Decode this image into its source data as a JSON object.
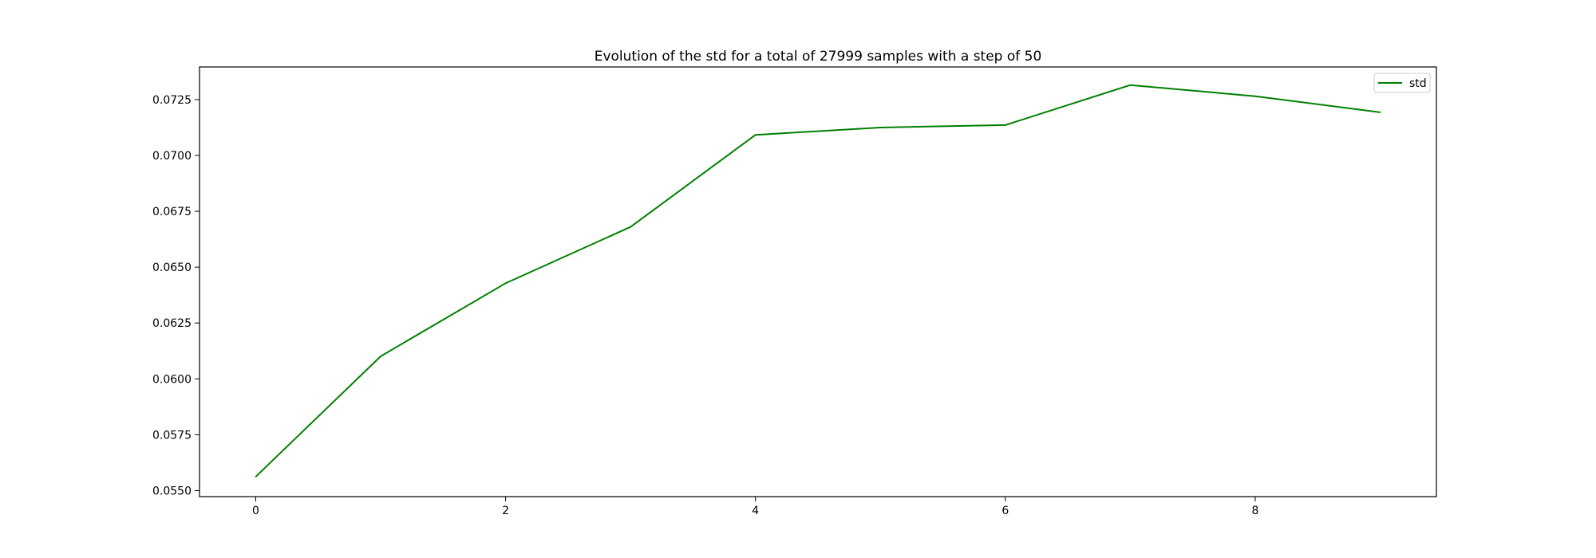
{
  "chart_data": {
    "type": "line",
    "title": "Evolution of the std for a total of 27999 samples with a step of 50",
    "xlabel": "",
    "ylabel": "",
    "x": [
      0,
      1,
      2,
      3,
      4,
      5,
      6,
      7,
      8,
      9
    ],
    "series": [
      {
        "name": "std",
        "color": "#008000",
        "values": [
          0.05562,
          0.06101,
          0.06428,
          0.0668,
          0.07092,
          0.07125,
          0.07136,
          0.07315,
          0.07265,
          0.07193
        ]
      }
    ],
    "xlim": [
      -0.45,
      9.45
    ],
    "ylim": [
      0.05473,
      0.07396
    ],
    "x_ticks": [
      0,
      2,
      4,
      6,
      8
    ],
    "x_tick_labels": [
      "0",
      "2",
      "4",
      "6",
      "8"
    ],
    "y_ticks": [
      0.055,
      0.0575,
      0.06,
      0.0625,
      0.065,
      0.0675,
      0.07,
      0.0725
    ],
    "y_tick_labels": [
      "0.0550",
      "0.0575",
      "0.0600",
      "0.0625",
      "0.0650",
      "0.0675",
      "0.0700",
      "0.0725"
    ],
    "grid": false,
    "legend_position": "top-right"
  }
}
